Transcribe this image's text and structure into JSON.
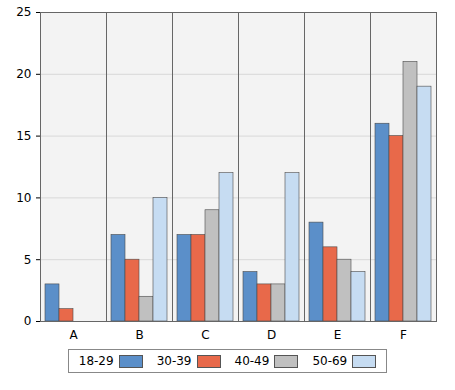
{
  "chart_data": {
    "type": "bar",
    "categories": [
      "A",
      "B",
      "C",
      "D",
      "E",
      "F"
    ],
    "series": [
      {
        "name": "18-29",
        "color": "#5b8fc9",
        "values": [
          3,
          7,
          7,
          4,
          8,
          16
        ]
      },
      {
        "name": "30-39",
        "color": "#e8694a",
        "values": [
          1,
          5,
          7,
          3,
          6,
          15
        ]
      },
      {
        "name": "40-49",
        "color": "#c0c0c0",
        "values": [
          0,
          2,
          9,
          3,
          5,
          21
        ]
      },
      {
        "name": "50-69",
        "color": "#c6dcf2",
        "values": [
          0,
          10,
          12,
          12,
          4,
          19
        ]
      }
    ],
    "ylim": [
      0,
      25
    ],
    "yticks": [
      0,
      5,
      10,
      15,
      20,
      25
    ],
    "grid": true,
    "legend": "bottom"
  }
}
